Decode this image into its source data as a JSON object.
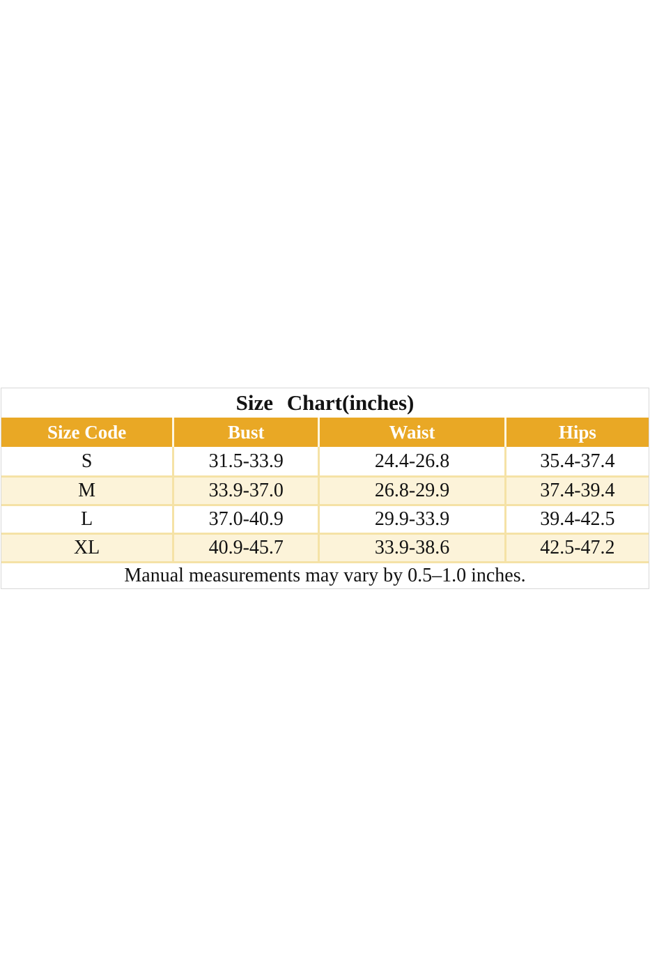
{
  "chart_data": {
    "type": "table",
    "title": "Size Chart(inches)",
    "columns": [
      "Size Code",
      "Bust",
      "Waist",
      "Hips"
    ],
    "rows": [
      [
        "S",
        "31.5-33.9",
        "24.4-26.8",
        "35.4-37.4"
      ],
      [
        "M",
        "33.9-37.0",
        "26.8-29.9",
        "37.4-39.4"
      ],
      [
        "L",
        "37.0-40.9",
        "29.9-33.9",
        "39.4-42.5"
      ],
      [
        "XL",
        "40.9-45.7",
        "33.9-38.6",
        "42.5-47.2"
      ]
    ],
    "note": "Manual measurements may vary by 0.5–1.0 inches."
  },
  "colors": {
    "header_bg": "#E9A825",
    "header_text": "#FFFFFF",
    "row_alt_bg": "#FCF3D9",
    "row_bg": "#FFFFFF",
    "cell_border": "#F5E2A6",
    "outer_border": "#D8D8D8",
    "text": "#121212"
  }
}
